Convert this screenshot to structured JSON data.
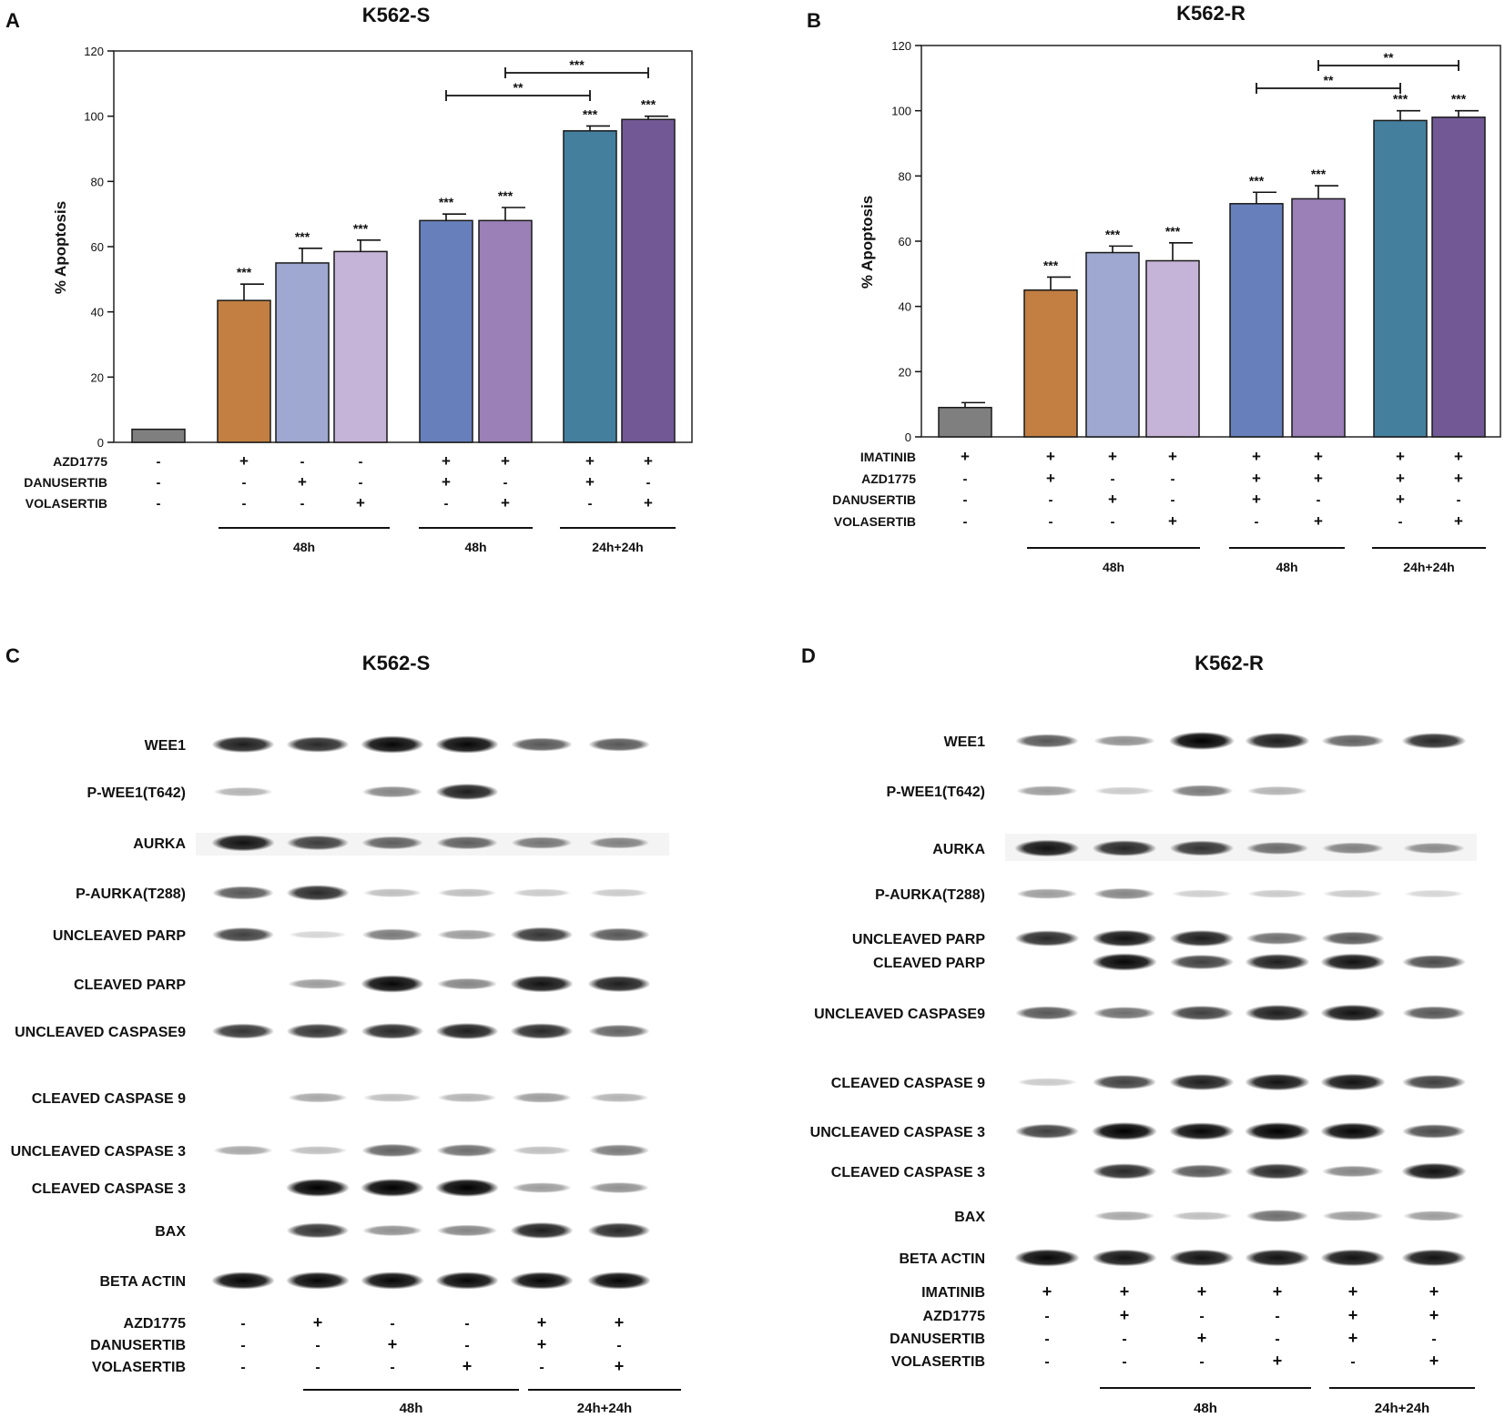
{
  "panels": {
    "A": {
      "letter": "A",
      "title": "K562-S",
      "rows": [
        "AZD1775",
        "DANUSERTIB",
        "VOLASERTIB"
      ],
      "signs": [
        [
          "-",
          "+",
          "-",
          "-",
          "+",
          "+",
          "+",
          "+"
        ],
        [
          "-",
          "-",
          "+",
          "-",
          "+",
          "-",
          "+",
          "-"
        ],
        [
          "-",
          "-",
          "-",
          "+",
          "-",
          "+",
          "-",
          "+"
        ]
      ],
      "groups": [
        "48h",
        "48h",
        "24h+24h"
      ],
      "stars": [
        "",
        "***",
        "***",
        "***",
        "***",
        "***",
        "***",
        "***"
      ],
      "brackets": [
        "**",
        "***"
      ]
    },
    "B": {
      "letter": "B",
      "title": "K562-R",
      "rows": [
        "IMATINIB",
        "AZD1775",
        "DANUSERTIB",
        "VOLASERTIB"
      ],
      "signs": [
        [
          "+",
          "+",
          "+",
          "+",
          "+",
          "+",
          "+",
          "+"
        ],
        [
          "-",
          "+",
          "-",
          "-",
          "+",
          "+",
          "+",
          "+"
        ],
        [
          "-",
          "-",
          "+",
          "-",
          "+",
          "-",
          "+",
          "-"
        ],
        [
          "-",
          "-",
          "-",
          "+",
          "-",
          "+",
          "-",
          "+"
        ]
      ],
      "groups": [
        "48h",
        "48h",
        "24h+24h"
      ],
      "stars": [
        "",
        "***",
        "***",
        "***",
        "***",
        "***",
        "***",
        "***"
      ],
      "brackets": [
        "**",
        "**"
      ]
    },
    "C": {
      "letter": "C",
      "title": "K562-S",
      "proteins": [
        "WEE1",
        "P-WEE1(T642)",
        "AURKA",
        "P-AURKA(T288)",
        "UNCLEAVED PARP",
        "CLEAVED PARP",
        "UNCLEAVED CASPASE9",
        "CLEAVED CASPASE 9",
        "UNCLEAVED CASPASE 3",
        "CLEAVED CASPASE 3",
        "BAX",
        "BETA ACTIN"
      ],
      "rows": [
        "AZD1775",
        "DANUSERTIB",
        "VOLASERTIB"
      ],
      "signs": [
        [
          "-",
          "+",
          "-",
          "-",
          "+",
          "+"
        ],
        [
          "-",
          "-",
          "+",
          "-",
          "+",
          "-"
        ],
        [
          "-",
          "-",
          "-",
          "+",
          "-",
          "+"
        ]
      ],
      "groups": [
        "48h",
        "24h+24h"
      ]
    },
    "D": {
      "letter": "D",
      "title": "K562-R",
      "proteins": [
        "WEE1",
        "P-WEE1(T642)",
        "AURKA",
        "P-AURKA(T288)",
        "UNCLEAVED PARP",
        "CLEAVED PARP",
        "UNCLEAVED CASPASE9",
        "CLEAVED CASPASE 9",
        "UNCLEAVED CASPASE 3",
        "CLEAVED CASPASE 3",
        "BAX",
        "BETA ACTIN"
      ],
      "rows": [
        "IMATINIB",
        "AZD1775",
        "DANUSERTIB",
        "VOLASERTIB"
      ],
      "signs": [
        [
          "+",
          "+",
          "+",
          "+",
          "+",
          "+"
        ],
        [
          "-",
          "+",
          "-",
          "-",
          "+",
          "+"
        ],
        [
          "-",
          "-",
          "+",
          "-",
          "+",
          "-"
        ],
        [
          "-",
          "-",
          "-",
          "+",
          "-",
          "+"
        ]
      ],
      "groups": [
        "48h",
        "24h+24h"
      ]
    }
  },
  "chart_data": [
    {
      "type": "bar",
      "panel": "A",
      "title": "K562-S",
      "ylabel": "% Apoptosis",
      "ylim": [
        0,
        120
      ],
      "yticks": [
        "0",
        "20",
        "40",
        "60",
        "80",
        "100",
        "120"
      ],
      "values": [
        4,
        43.5,
        55,
        58.5,
        68,
        68,
        95.5,
        99
      ],
      "errors": [
        0,
        5,
        4.5,
        3.5,
        2,
        4,
        1.5,
        1
      ],
      "colors": [
        "#7f7f7f",
        "#c27f41",
        "#9ea8d0",
        "#c6b4d8",
        "#6780bb",
        "#9a80b6",
        "#44809e",
        "#725996"
      ]
    },
    {
      "type": "bar",
      "panel": "B",
      "title": "K562-R",
      "ylabel": "% Apoptosis",
      "ylim": [
        0,
        120
      ],
      "yticks": [
        "0",
        "20",
        "40",
        "60",
        "80",
        "100",
        "120"
      ],
      "values": [
        9,
        45,
        56.5,
        54,
        71.5,
        73,
        97,
        98
      ],
      "errors": [
        1.5,
        4,
        2,
        5.5,
        3.5,
        4,
        3,
        2
      ],
      "colors": [
        "#7f7f7f",
        "#c27f41",
        "#9ea8d0",
        "#c6b4d8",
        "#6780bb",
        "#9a80b6",
        "#44809e",
        "#725996"
      ]
    }
  ],
  "blots": {
    "C": [
      [
        0.85,
        0.8,
        0.95,
        0.95,
        0.6,
        0.6
      ],
      [
        0.2,
        0,
        0.4,
        0.85,
        0,
        0
      ],
      [
        0.9,
        0.7,
        0.55,
        0.55,
        0.45,
        0.4
      ],
      [
        0.6,
        0.8,
        0.15,
        0.15,
        0.1,
        0.1
      ],
      [
        0.7,
        0.05,
        0.45,
        0.3,
        0.75,
        0.6
      ],
      [
        0,
        0.3,
        0.95,
        0.4,
        0.9,
        0.85
      ],
      [
        0.75,
        0.75,
        0.8,
        0.85,
        0.8,
        0.55
      ],
      [
        0,
        0.25,
        0.15,
        0.2,
        0.3,
        0.2
      ],
      [
        0.25,
        0.15,
        0.55,
        0.5,
        0.15,
        0.45
      ],
      [
        0,
        1,
        1,
        1,
        0.3,
        0.35
      ],
      [
        0,
        0.75,
        0.35,
        0.4,
        0.85,
        0.8
      ],
      [
        0.95,
        0.95,
        0.95,
        0.95,
        0.95,
        0.95
      ]
    ],
    "D": [
      [
        0.6,
        0.35,
        1,
        0.85,
        0.55,
        0.8
      ],
      [
        0.3,
        0.1,
        0.45,
        0.2,
        0,
        0
      ],
      [
        0.9,
        0.8,
        0.75,
        0.5,
        0.4,
        0.35
      ],
      [
        0.3,
        0.4,
        0.08,
        0.1,
        0.1,
        0.05
      ],
      [
        0.8,
        0.9,
        0.85,
        0.5,
        0.6,
        0
      ],
      [
        0,
        0.95,
        0.7,
        0.85,
        0.9,
        0.65
      ],
      [
        0.6,
        0.5,
        0.7,
        0.85,
        0.9,
        0.6
      ],
      [
        0.1,
        0.7,
        0.85,
        0.9,
        0.9,
        0.7
      ],
      [
        0.7,
        1,
        0.95,
        1,
        0.95,
        0.65
      ],
      [
        0,
        0.8,
        0.6,
        0.8,
        0.4,
        0.9
      ],
      [
        0,
        0.25,
        0.15,
        0.5,
        0.3,
        0.3
      ],
      [
        0.95,
        0.9,
        0.9,
        0.9,
        0.9,
        0.9
      ]
    ]
  }
}
